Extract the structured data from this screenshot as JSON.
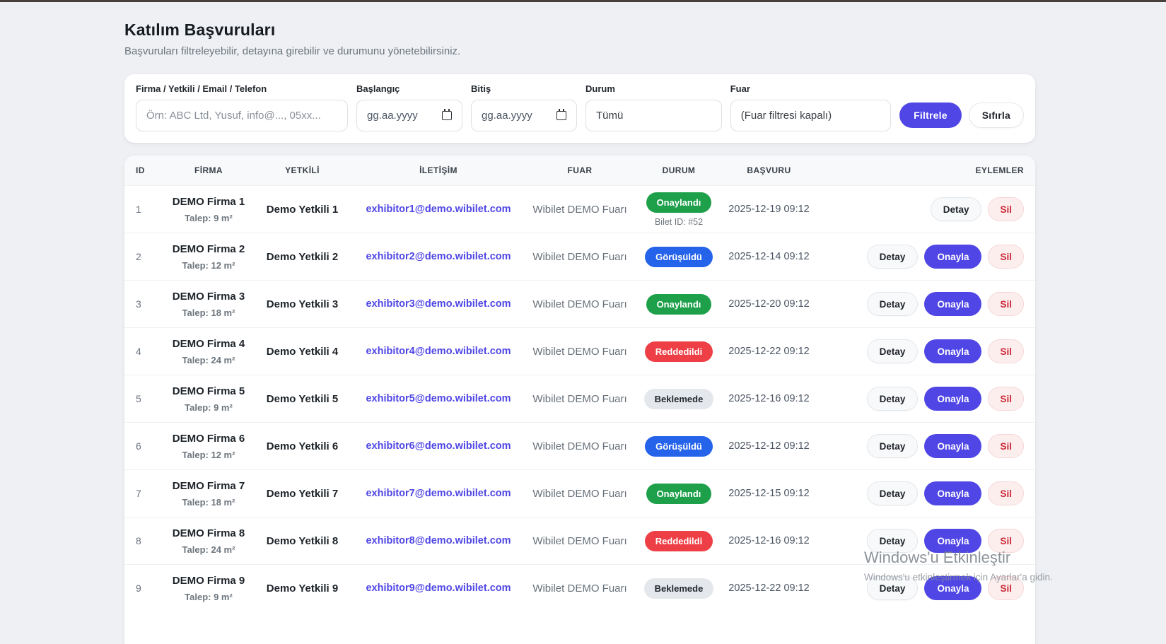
{
  "page": {
    "title": "Katılım Başvuruları",
    "subtitle": "Başvuruları filtreleyebilir, detayına girebilir ve durumunu yönetebilirsiniz."
  },
  "filters": {
    "search": {
      "label": "Firma / Yetkili / Email / Telefon",
      "placeholder": "Örn: ABC Ltd, Yusuf, info@..., 05xx..."
    },
    "start_date": {
      "label": "Başlangıç",
      "value": "gg.aa.yyyy"
    },
    "end_date": {
      "label": "Bitiş",
      "value": "gg.aa.yyyy"
    },
    "status": {
      "label": "Durum",
      "value": "Tümü"
    },
    "fair": {
      "label": "Fuar",
      "value": "(Fuar filtresi kapalı)"
    },
    "filter_button": "Filtrele",
    "reset_button": "Sıfırla"
  },
  "table": {
    "columns": [
      "ID",
      "FİRMA",
      "YETKİLİ",
      "İLETİŞİM",
      "FUAR",
      "DURUM",
      "BAŞVURU",
      "EYLEMLER"
    ],
    "rows": [
      {
        "id": "1",
        "company": "DEMO Firma 1",
        "request": "Talep: 9 m²",
        "person": "Demo Yetkili 1",
        "email": "exhibitor1@demo.wibilet.com",
        "fair": "Wibilet DEMO Fuarı",
        "status_label": "Onaylandı",
        "status_type": "approved",
        "status_note": "Bilet ID: #52",
        "applied_at": "2025-12-19 09:12",
        "has_approve": false
      },
      {
        "id": "2",
        "company": "DEMO Firma 2",
        "request": "Talep: 12 m²",
        "person": "Demo Yetkili 2",
        "email": "exhibitor2@demo.wibilet.com",
        "fair": "Wibilet DEMO Fuarı",
        "status_label": "Görüşüldü",
        "status_type": "reviewed",
        "status_note": "",
        "applied_at": "2025-12-14 09:12",
        "has_approve": true
      },
      {
        "id": "3",
        "company": "DEMO Firma 3",
        "request": "Talep: 18 m²",
        "person": "Demo Yetkili 3",
        "email": "exhibitor3@demo.wibilet.com",
        "fair": "Wibilet DEMO Fuarı",
        "status_label": "Onaylandı",
        "status_type": "approved",
        "status_note": "",
        "applied_at": "2025-12-20 09:12",
        "has_approve": true
      },
      {
        "id": "4",
        "company": "DEMO Firma 4",
        "request": "Talep: 24 m²",
        "person": "Demo Yetkili 4",
        "email": "exhibitor4@demo.wibilet.com",
        "fair": "Wibilet DEMO Fuarı",
        "status_label": "Reddedildi",
        "status_type": "rejected",
        "status_note": "",
        "applied_at": "2025-12-22 09:12",
        "has_approve": true
      },
      {
        "id": "5",
        "company": "DEMO Firma 5",
        "request": "Talep: 9 m²",
        "person": "Demo Yetkili 5",
        "email": "exhibitor5@demo.wibilet.com",
        "fair": "Wibilet DEMO Fuarı",
        "status_label": "Beklemede",
        "status_type": "pending",
        "status_note": "",
        "applied_at": "2025-12-16 09:12",
        "has_approve": true
      },
      {
        "id": "6",
        "company": "DEMO Firma 6",
        "request": "Talep: 12 m²",
        "person": "Demo Yetkili 6",
        "email": "exhibitor6@demo.wibilet.com",
        "fair": "Wibilet DEMO Fuarı",
        "status_label": "Görüşüldü",
        "status_type": "reviewed",
        "status_note": "",
        "applied_at": "2025-12-12 09:12",
        "has_approve": true
      },
      {
        "id": "7",
        "company": "DEMO Firma 7",
        "request": "Talep: 18 m²",
        "person": "Demo Yetkili 7",
        "email": "exhibitor7@demo.wibilet.com",
        "fair": "Wibilet DEMO Fuarı",
        "status_label": "Onaylandı",
        "status_type": "approved",
        "status_note": "",
        "applied_at": "2025-12-15 09:12",
        "has_approve": true
      },
      {
        "id": "8",
        "company": "DEMO Firma 8",
        "request": "Talep: 24 m²",
        "person": "Demo Yetkili 8",
        "email": "exhibitor8@demo.wibilet.com",
        "fair": "Wibilet DEMO Fuarı",
        "status_label": "Reddedildi",
        "status_type": "rejected",
        "status_note": "",
        "applied_at": "2025-12-16 09:12",
        "has_approve": true
      },
      {
        "id": "9",
        "company": "DEMO Firma 9",
        "request": "Talep: 9 m²",
        "person": "Demo Yetkili 9",
        "email": "exhibitor9@demo.wibilet.com",
        "fair": "Wibilet DEMO Fuarı",
        "status_label": "Beklemede",
        "status_type": "pending",
        "status_note": "",
        "applied_at": "2025-12-22 09:12",
        "has_approve": true
      }
    ]
  },
  "row_actions": {
    "detail": "Detay",
    "approve": "Onayla",
    "delete": "Sil"
  },
  "watermark": {
    "line1": "Windows'u Etkinleştir",
    "line2": "Windows'u etkinleştirmek için Ayarlar'a gidin."
  },
  "colors": {
    "accent": "#4f46e5",
    "status_approved": "#1ea04b",
    "status_reviewed": "#2563eb",
    "status_rejected": "#ee3f46",
    "status_pending": "#e4e8ec",
    "delete_text": "#cb2937",
    "delete_bg": "#fdeeee"
  }
}
